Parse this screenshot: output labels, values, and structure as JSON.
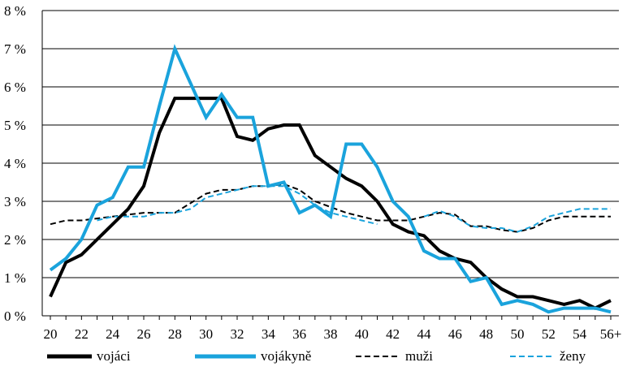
{
  "chart_data": {
    "type": "line",
    "title": "",
    "xlabel": "",
    "ylabel": "",
    "x": [
      "20",
      "21",
      "22",
      "23",
      "24",
      "25",
      "26",
      "27",
      "28",
      "29",
      "30",
      "31",
      "32",
      "33",
      "34",
      "35",
      "36",
      "37",
      "38",
      "39",
      "40",
      "41",
      "42",
      "43",
      "44",
      "45",
      "46",
      "47",
      "48",
      "49",
      "50",
      "51",
      "52",
      "53",
      "54",
      "55",
      "56+"
    ],
    "x_tick_labels": [
      "20",
      "22",
      "24",
      "26",
      "28",
      "30",
      "32",
      "34",
      "36",
      "38",
      "40",
      "42",
      "44",
      "46",
      "48",
      "50",
      "52",
      "54",
      "56+"
    ],
    "y_tick_labels": [
      "0 %",
      "1 %",
      "2 %",
      "3 %",
      "4 %",
      "5 %",
      "6 %",
      "7 %",
      "8 %"
    ],
    "y_tick_values": [
      0,
      1,
      2,
      3,
      4,
      5,
      6,
      7,
      8
    ],
    "ylim": [
      0,
      8
    ],
    "grid": "horizontal",
    "legend_position": "bottom",
    "series": [
      {
        "name": "vojáci",
        "color": "#000000",
        "style": "solid-thick",
        "values": [
          0.5,
          1.4,
          1.6,
          2.0,
          2.4,
          2.8,
          3.4,
          4.8,
          5.7,
          5.7,
          5.7,
          5.7,
          4.7,
          4.6,
          4.9,
          5.0,
          5.0,
          4.2,
          3.9,
          3.6,
          3.4,
          3.0,
          2.4,
          2.2,
          2.1,
          1.7,
          1.5,
          1.4,
          1.0,
          0.7,
          0.5,
          0.5,
          0.4,
          0.3,
          0.4,
          0.2,
          0.4
        ]
      },
      {
        "name": "vojákyně",
        "color": "#1aa3dc",
        "style": "solid-thick",
        "values": [
          1.2,
          1.5,
          2.0,
          2.9,
          3.1,
          3.9,
          3.9,
          5.5,
          7.0,
          6.1,
          5.2,
          5.8,
          5.2,
          5.2,
          3.4,
          3.5,
          2.7,
          2.9,
          2.6,
          4.5,
          4.5,
          3.9,
          3.0,
          2.6,
          1.7,
          1.5,
          1.5,
          0.9,
          1.0,
          0.3,
          0.4,
          0.3,
          0.1,
          0.2,
          0.2,
          0.2,
          0.1
        ]
      },
      {
        "name": "muži",
        "color": "#000000",
        "style": "dashed",
        "values": [
          2.4,
          2.5,
          2.5,
          2.55,
          2.6,
          2.65,
          2.7,
          2.7,
          2.7,
          2.95,
          3.2,
          3.3,
          3.3,
          3.4,
          3.4,
          3.45,
          3.3,
          3.0,
          2.85,
          2.7,
          2.6,
          2.5,
          2.5,
          2.5,
          2.6,
          2.7,
          2.65,
          2.35,
          2.35,
          2.25,
          2.2,
          2.3,
          2.5,
          2.6,
          2.6,
          2.6,
          2.6
        ]
      },
      {
        "name": "ženy",
        "color": "#1aa3dc",
        "style": "dashed",
        "values": [
          null,
          null,
          null,
          2.5,
          2.6,
          2.6,
          2.6,
          2.7,
          2.7,
          2.8,
          3.1,
          3.2,
          3.3,
          3.4,
          3.4,
          3.4,
          3.2,
          2.9,
          2.7,
          2.6,
          2.5,
          2.4,
          null,
          null,
          2.6,
          2.75,
          2.6,
          2.35,
          2.3,
          2.3,
          2.2,
          2.35,
          2.6,
          2.7,
          2.8,
          2.8,
          2.8
        ]
      }
    ]
  }
}
